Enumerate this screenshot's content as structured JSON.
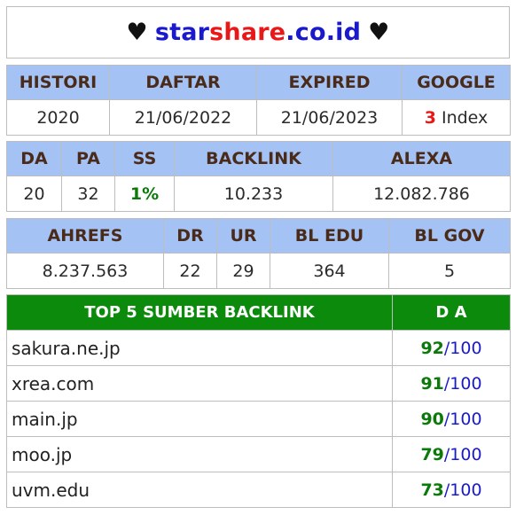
{
  "header": {
    "heart_left": "♥",
    "name_part1": "star",
    "name_part2": "share",
    "name_part3": ".co.id",
    "heart_right": "♥"
  },
  "table1": {
    "headers": [
      "HISTORI",
      "DAFTAR",
      "EXPIRED",
      "GOOGLE"
    ],
    "values": {
      "histori": "2020",
      "daftar": "21/06/2022",
      "expired": "21/06/2023",
      "google_count": "3",
      "google_label": " Index"
    }
  },
  "table2": {
    "headers": [
      "DA",
      "PA",
      "SS",
      "BACKLINK",
      "ALEXA"
    ],
    "values": {
      "da": "20",
      "pa": "32",
      "ss": "1%",
      "backlink": "10.233",
      "alexa": "12.082.786"
    }
  },
  "table3": {
    "headers": [
      "AHREFS",
      "DR",
      "UR",
      "BL EDU",
      "BL GOV"
    ],
    "values": {
      "ahrefs": "8.237.563",
      "dr": "22",
      "ur": "29",
      "bl_edu": "364",
      "bl_gov": "5"
    }
  },
  "table4": {
    "headers": [
      "TOP 5 SUMBER BACKLINK",
      "D A"
    ],
    "rows": [
      {
        "domain": "sakura.ne.jp",
        "score": "92",
        "max": "/100"
      },
      {
        "domain": "xrea.com",
        "score": "91",
        "max": "/100"
      },
      {
        "domain": "main.jp",
        "score": "90",
        "max": "/100"
      },
      {
        "domain": "moo.jp",
        "score": "79",
        "max": "/100"
      },
      {
        "domain": "uvm.edu",
        "score": "73",
        "max": "/100"
      }
    ]
  },
  "colors": {
    "header_blue": "#a4c2f4",
    "header_green": "#0b8a0b",
    "accent_red": "#e81818",
    "accent_blue": "#1a1acc",
    "accent_green": "#0b7a0b"
  }
}
